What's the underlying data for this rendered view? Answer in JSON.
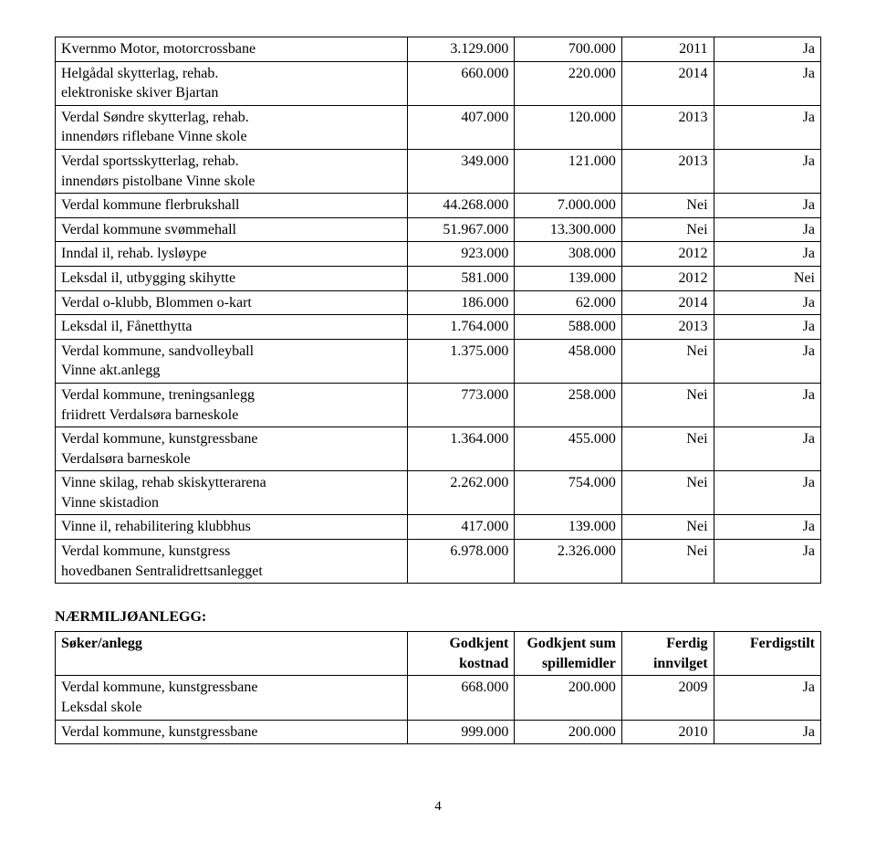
{
  "main_table": {
    "rows": [
      {
        "name": "Kvernmo Motor, motorcrossbane",
        "a": "3.129.000",
        "b": "700.000",
        "c": "2011",
        "d": "Ja"
      },
      {
        "name": "Helgådal skytterlag, rehab.\nelektroniske skiver Bjartan",
        "a": "660.000",
        "b": "220.000",
        "c": "2014",
        "d": "Ja"
      },
      {
        "name": "Verdal Søndre skytterlag, rehab.\ninnendørs riflebane Vinne skole",
        "a": "407.000",
        "b": "120.000",
        "c": "2013",
        "d": "Ja"
      },
      {
        "name": "Verdal sportsskytterlag, rehab.\ninnendørs pistolbane Vinne skole",
        "a": "349.000",
        "b": "121.000",
        "c": "2013",
        "d": "Ja"
      },
      {
        "name": "Verdal kommune flerbrukshall",
        "a": "44.268.000",
        "b": "7.000.000",
        "c": "Nei",
        "d": "Ja"
      },
      {
        "name": "Verdal kommune svømmehall",
        "a": "51.967.000",
        "b": "13.300.000",
        "c": "Nei",
        "d": "Ja"
      },
      {
        "name": "Inndal il, rehab. lysløype",
        "a": "923.000",
        "b": "308.000",
        "c": "2012",
        "d": "Ja"
      },
      {
        "name": "Leksdal il, utbygging skihytte",
        "a": "581.000",
        "b": "139.000",
        "c": "2012",
        "d": "Nei"
      },
      {
        "name": "Verdal o-klubb, Blommen o-kart",
        "a": "186.000",
        "b": "62.000",
        "c": "2014",
        "d": "Ja"
      },
      {
        "name": "Leksdal il, Fånetthytta",
        "a": "1.764.000",
        "b": "588.000",
        "c": "2013",
        "d": "Ja"
      },
      {
        "name": "Verdal kommune, sandvolleyball\nVinne akt.anlegg",
        "a": "1.375.000",
        "b": "458.000",
        "c": "Nei",
        "d": "Ja"
      },
      {
        "name": "Verdal kommune, treningsanlegg\nfriidrett Verdalsøra barneskole",
        "a": "773.000",
        "b": "258.000",
        "c": "Nei",
        "d": "Ja"
      },
      {
        "name": "Verdal kommune, kunstgressbane\nVerdalsøra barneskole",
        "a": "1.364.000",
        "b": "455.000",
        "c": "Nei",
        "d": "Ja"
      },
      {
        "name": "Vinne skilag, rehab skiskytterarena\nVinne skistadion",
        "a": "2.262.000",
        "b": "754.000",
        "c": "Nei",
        "d": "Ja"
      },
      {
        "name": "Vinne il, rehabilitering klubbhus",
        "a": "417.000",
        "b": "139.000",
        "c": "Nei",
        "d": "Ja"
      },
      {
        "name": "Verdal kommune, kunstgress\nhovedbanen Sentralidrettsanlegget",
        "a": "6.978.000",
        "b": "2.326.000",
        "c": "Nei",
        "d": "Ja"
      }
    ]
  },
  "section2": {
    "heading": "NÆRMILJØANLEGG:",
    "headers": {
      "name": "Søker/anlegg",
      "a": "Godkjent\nkostnad",
      "b": "Godkjent sum\nspillemidler",
      "c": "Ferdig\ninnvilget",
      "d": "Ferdigstilt"
    },
    "rows": [
      {
        "name": "Verdal kommune, kunstgressbane\nLeksdal skole",
        "a": "668.000",
        "b": "200.000",
        "c": "2009",
        "d": "Ja"
      },
      {
        "name": "Verdal kommune, kunstgressbane",
        "a": "999.000",
        "b": "200.000",
        "c": "2010",
        "d": "Ja"
      }
    ]
  },
  "page_number": "4"
}
